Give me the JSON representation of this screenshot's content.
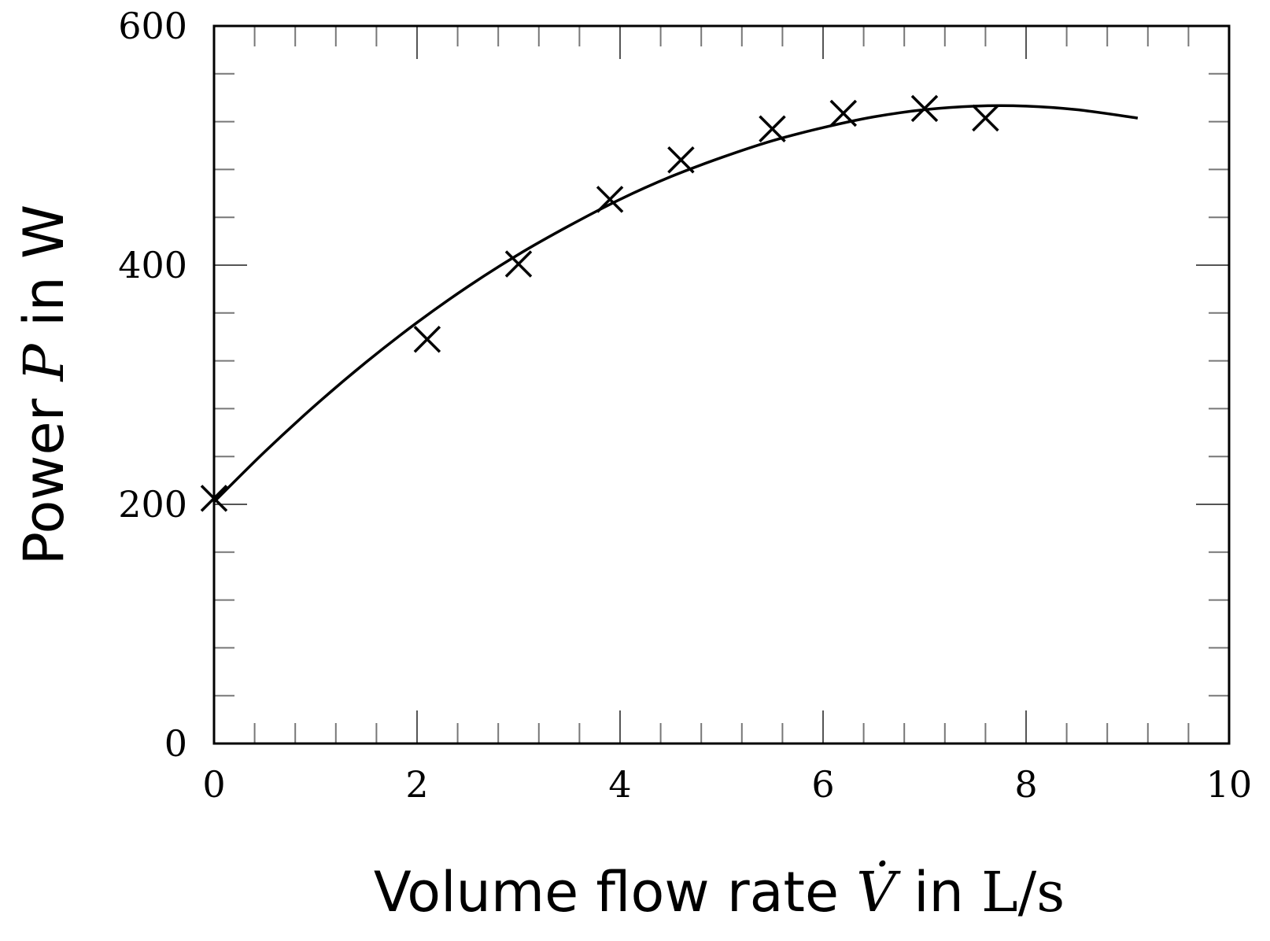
{
  "chart_data": {
    "type": "scatter",
    "xlabel": {
      "prefix": "Volume flow rate ",
      "symbol": "V̇",
      "middle": " in ",
      "unit": "L/s"
    },
    "ylabel": {
      "prefix": "Power ",
      "symbol": "P",
      "middle": " in W"
    },
    "xlim": [
      0,
      10
    ],
    "ylim": [
      0,
      600
    ],
    "xticks": [
      0,
      2,
      4,
      6,
      8,
      10
    ],
    "yticks": [
      0,
      200,
      400,
      600
    ],
    "x_minor_step": 0.4,
    "y_minor_step": 40,
    "grid": false,
    "series": [
      {
        "kind": "points",
        "marker": "cross",
        "x": [
          0,
          2.1,
          3.0,
          3.9,
          4.6,
          5.5,
          6.2,
          7.0,
          7.6
        ],
        "y": [
          205,
          338,
          401,
          455,
          488,
          514,
          527,
          531,
          523
        ]
      },
      {
        "kind": "fit-curve",
        "x": [
          0,
          0.5,
          1.0,
          1.5,
          2.0,
          2.5,
          3.0,
          3.5,
          4.0,
          4.5,
          5.0,
          5.5,
          6.0,
          6.5,
          7.0,
          7.5,
          8.0,
          8.5,
          9.1
        ],
        "y": [
          202,
          244,
          283,
          319,
          352,
          382,
          409,
          433,
          455,
          474,
          490,
          504,
          515,
          524,
          530,
          533,
          533,
          530,
          523
        ]
      }
    ]
  }
}
